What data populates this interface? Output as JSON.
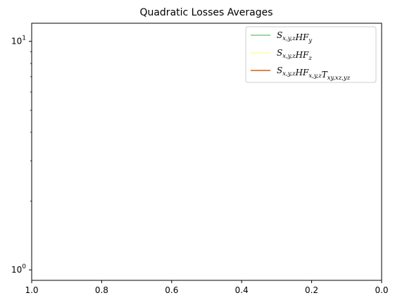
{
  "chart_data": {
    "type": "line",
    "title": "Quadratic Losses Averages",
    "xlabel": "",
    "ylabel": "",
    "xlim": [
      1.0,
      0.0
    ],
    "ylim": [
      0.9,
      12
    ],
    "yscale": "log",
    "grid": false,
    "legend_position": "top-right",
    "x_ticks": [
      1.0,
      0.8,
      0.6,
      0.4,
      0.2,
      0.0
    ],
    "x_tick_labels": [
      "1.0",
      "0.8",
      "0.6",
      "0.4",
      "0.2",
      "0.0"
    ],
    "y_major_ticks": [
      1,
      10
    ],
    "series": [
      {
        "name": "S_{x,y,z}HF_y",
        "color": "#7fc97f",
        "values": []
      },
      {
        "name": "S_{x,y,z}HF_z",
        "color": "#ffff99",
        "values": []
      },
      {
        "name": "S_{x,y,z}HF_{x,y,z}T_{xy,xz,yz}",
        "color": "#d95f0e",
        "values": []
      }
    ]
  }
}
